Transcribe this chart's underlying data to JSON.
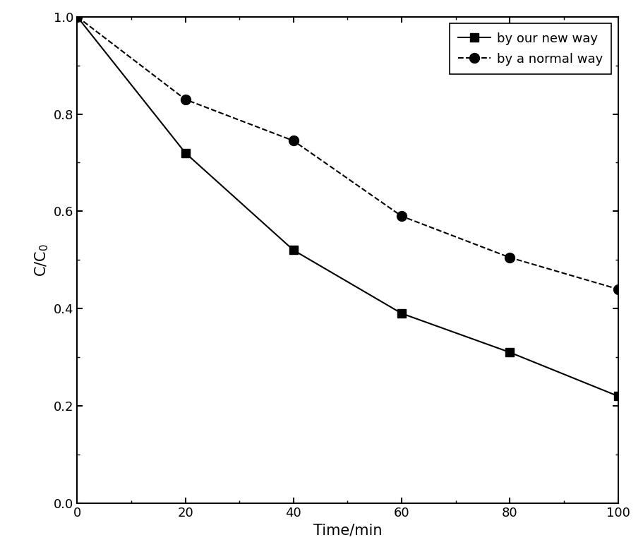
{
  "new_way_x": [
    0,
    20,
    40,
    60,
    80,
    100
  ],
  "new_way_y": [
    1.0,
    0.72,
    0.52,
    0.39,
    0.31,
    0.22
  ],
  "normal_way_x": [
    0,
    20,
    40,
    60,
    80,
    100
  ],
  "normal_way_y": [
    1.0,
    0.83,
    0.745,
    0.59,
    0.505,
    0.44
  ],
  "new_way_label": "by our new way",
  "normal_way_label": "by a normal way",
  "xlabel": "Time/min",
  "ylabel": "C/C$_0$",
  "xlim": [
    0,
    100
  ],
  "ylim": [
    0.0,
    1.0
  ],
  "xticks": [
    0,
    20,
    40,
    60,
    80,
    100
  ],
  "yticks": [
    0.0,
    0.2,
    0.4,
    0.6,
    0.8,
    1.0
  ],
  "line_color": "black",
  "background_color": "white",
  "legend_fontsize": 13,
  "axis_fontsize": 15,
  "tick_fontsize": 13,
  "marker_size_square": 8,
  "marker_size_circle": 10,
  "line_width": 1.5
}
